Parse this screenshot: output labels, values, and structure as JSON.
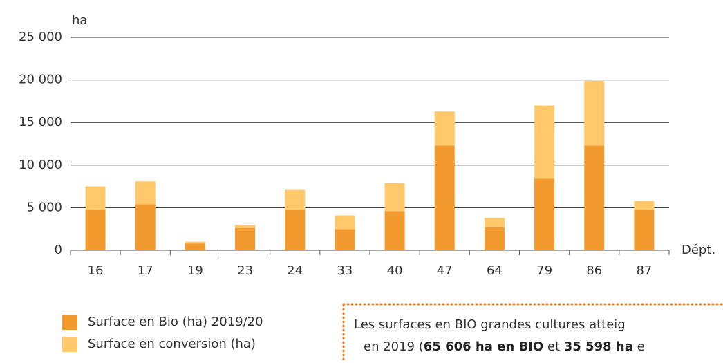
{
  "chart_data": {
    "type": "stacked_bar",
    "y_label": "ha",
    "x_label": "Dépt.",
    "categories": [
      "16",
      "17",
      "19",
      "23",
      "24",
      "33",
      "40",
      "47",
      "64",
      "79",
      "86",
      "87"
    ],
    "series": [
      {
        "name": "Surface en Bio (ha) 2019/20",
        "color": "#f39a2e",
        "values": [
          4800,
          5400,
          800,
          2600,
          4800,
          2500,
          4600,
          12300,
          2700,
          8400,
          12300,
          4800
        ]
      },
      {
        "name": "Surface en conversion (ha)",
        "color": "#ffc96b",
        "values": [
          2700,
          2700,
          200,
          400,
          2300,
          1600,
          3300,
          4000,
          1100,
          8600,
          7600,
          1000
        ]
      }
    ],
    "ylim": [
      0,
      25000
    ],
    "yticks": [
      0,
      {
        "value": 5000,
        "label": "5 000"
      },
      {
        "value": 10000,
        "label": "10 000"
      },
      {
        "value": 15000,
        "label": "15 000"
      },
      {
        "value": 20000,
        "label": "20 000"
      },
      {
        "value": 25000,
        "label": "25 000"
      }
    ],
    "grid": true,
    "annotation": {
      "line1": "Les surfaces en BIO grandes cultures atteig",
      "line2": [
        "en 2019 (",
        "65 606 ha en BIO",
        " et ",
        "35 598 ha",
        " e"
      ]
    }
  }
}
